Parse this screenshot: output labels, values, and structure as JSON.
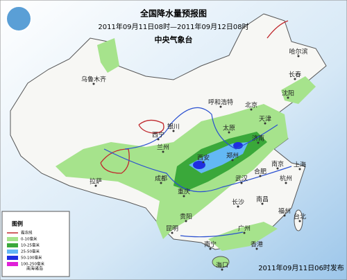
{
  "header": {
    "title": "全国降水量预报图",
    "period": "2011年09月11日08时—2011年09月12日08时",
    "issuer": "中央气象台"
  },
  "cities": [
    "乌鲁木齐",
    "哈尔滨",
    "长春",
    "沈阳",
    "呼和浩特",
    "北京",
    "天津",
    "银川",
    "太原",
    "济南",
    "西宁",
    "兰州",
    "西安",
    "郑州",
    "拉萨",
    "成都",
    "重庆",
    "武汉",
    "合肥",
    "南京",
    "上海",
    "杭州",
    "长沙",
    "南昌",
    "贵阳",
    "福州",
    "台北",
    "昆明",
    "南宁",
    "广州",
    "香港",
    "海口"
  ],
  "legend": {
    "title": "图例",
    "items": [
      {
        "label": "霜冻线",
        "color": "#c0282d"
      },
      {
        "label": "0-10毫米",
        "color": "#a6e38c"
      },
      {
        "label": "10-25毫米",
        "color": "#3aa83a"
      },
      {
        "label": "25-50毫米",
        "color": "#63b8f5"
      },
      {
        "label": "50-100毫米",
        "color": "#1f2ee0"
      },
      {
        "label": "100-250毫米",
        "color": "#e020d8"
      }
    ]
  },
  "inset": "南海诸岛",
  "footer": "2011年09月11日06时发布"
}
